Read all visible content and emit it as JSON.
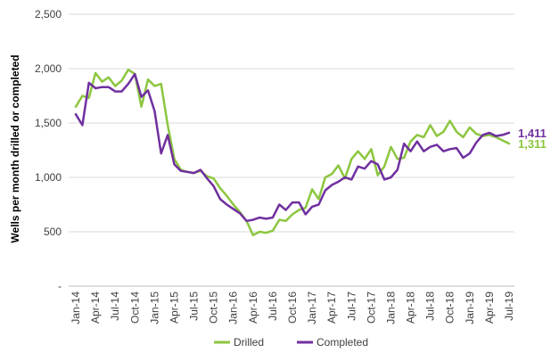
{
  "chart_data": {
    "type": "line",
    "ylabel": "Wells per month drilled or completed",
    "xlabel": "",
    "ylim": [
      0,
      2500
    ],
    "y_ticks": [
      {
        "value": 0,
        "label": "-"
      },
      {
        "value": 500,
        "label": "500"
      },
      {
        "value": 1000,
        "label": "1,000"
      },
      {
        "value": 1500,
        "label": "1,500"
      },
      {
        "value": 2000,
        "label": "2,000"
      },
      {
        "value": 2500,
        "label": "2,500"
      }
    ],
    "x_ticks": [
      {
        "index": 0,
        "label": "Jan-14"
      },
      {
        "index": 3,
        "label": "Apr-14"
      },
      {
        "index": 6,
        "label": "Jul-14"
      },
      {
        "index": 9,
        "label": "Oct-14"
      },
      {
        "index": 12,
        "label": "Jan-15"
      },
      {
        "index": 15,
        "label": "Apr-15"
      },
      {
        "index": 18,
        "label": "Jul-15"
      },
      {
        "index": 21,
        "label": "Oct-15"
      },
      {
        "index": 24,
        "label": "Jan-16"
      },
      {
        "index": 27,
        "label": "Apr-16"
      },
      {
        "index": 30,
        "label": "Jul-16"
      },
      {
        "index": 33,
        "label": "Oct-16"
      },
      {
        "index": 36,
        "label": "Jan-17"
      },
      {
        "index": 39,
        "label": "Apr-17"
      },
      {
        "index": 42,
        "label": "Jul-17"
      },
      {
        "index": 45,
        "label": "Oct-17"
      },
      {
        "index": 48,
        "label": "Jan-18"
      },
      {
        "index": 51,
        "label": "Apr-18"
      },
      {
        "index": 54,
        "label": "Jul-18"
      },
      {
        "index": 57,
        "label": "Oct-18"
      },
      {
        "index": 60,
        "label": "Jan-19"
      },
      {
        "index": 63,
        "label": "Apr-19"
      },
      {
        "index": 66,
        "label": "Jul-19"
      }
    ],
    "grid": "horizontal",
    "legend_position": "bottom",
    "series": [
      {
        "name": "Drilled",
        "color": "#8cc63f",
        "end_label": "1,311",
        "values": [
          1650,
          1750,
          1730,
          1960,
          1880,
          1920,
          1840,
          1890,
          1990,
          1950,
          1650,
          1900,
          1840,
          1860,
          1480,
          1170,
          1070,
          1050,
          1040,
          1060,
          1010,
          990,
          900,
          830,
          750,
          680,
          600,
          470,
          500,
          490,
          510,
          610,
          600,
          660,
          700,
          720,
          890,
          800,
          1000,
          1030,
          1110,
          990,
          1170,
          1240,
          1170,
          1260,
          1020,
          1100,
          1280,
          1170,
          1180,
          1330,
          1390,
          1370,
          1480,
          1380,
          1420,
          1520,
          1420,
          1370,
          1460,
          1400,
          1380,
          1390,
          1370,
          1340,
          1311
        ]
      },
      {
        "name": "Completed",
        "color": "#7030a0",
        "end_label": "1,411",
        "values": [
          1580,
          1480,
          1870,
          1820,
          1830,
          1830,
          1790,
          1790,
          1860,
          1950,
          1740,
          1800,
          1610,
          1220,
          1390,
          1120,
          1060,
          1050,
          1040,
          1070,
          990,
          920,
          800,
          750,
          710,
          670,
          600,
          610,
          630,
          620,
          630,
          750,
          700,
          770,
          770,
          660,
          730,
          750,
          880,
          930,
          960,
          1000,
          980,
          1100,
          1080,
          1150,
          1120,
          980,
          1000,
          1070,
          1310,
          1240,
          1330,
          1240,
          1280,
          1300,
          1240,
          1260,
          1270,
          1180,
          1220,
          1320,
          1390,
          1410,
          1380,
          1390,
          1411
        ]
      }
    ]
  }
}
